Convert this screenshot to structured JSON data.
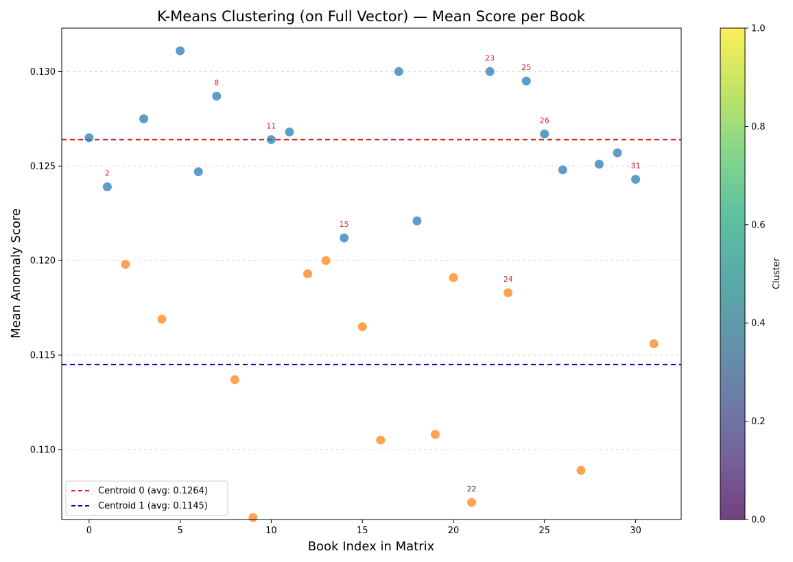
{
  "chart_data": {
    "type": "scatter",
    "title": "K-Means Clustering (on Full Vector) — Mean Score per Book",
    "xlabel": "Book Index in Matrix",
    "ylabel": "Mean Anomaly Score",
    "xlim": [
      -1.5,
      32.5
    ],
    "ylim": [
      0.1063,
      0.1323
    ],
    "x_ticks": [
      0,
      5,
      10,
      15,
      20,
      25,
      30
    ],
    "x_tick_labels": [
      "0",
      "5",
      "10",
      "15",
      "20",
      "25",
      "30"
    ],
    "y_ticks": [
      0.11,
      0.115,
      0.12,
      0.125,
      0.13
    ],
    "y_tick_labels": [
      "0.110",
      "0.115",
      "0.120",
      "0.125",
      "0.130"
    ],
    "grid": "horizontal dashed",
    "colors": {
      "cluster0": "#1f77b4",
      "cluster1": "#ff7f0e",
      "centroid0": "#d62728",
      "centroid1": "#0000cc",
      "annotation_red": "#d62728",
      "annotation_dark": "#333333"
    },
    "series": [
      {
        "cluster": 0,
        "points": [
          {
            "x": 0,
            "y": 0.1265
          },
          {
            "x": 1,
            "y": 0.1239
          },
          {
            "x": 3,
            "y": 0.1275
          },
          {
            "x": 5,
            "y": 0.1311
          },
          {
            "x": 6,
            "y": 0.1247
          },
          {
            "x": 7,
            "y": 0.1287
          },
          {
            "x": 10,
            "y": 0.1264
          },
          {
            "x": 11,
            "y": 0.1268
          },
          {
            "x": 14,
            "y": 0.1212
          },
          {
            "x": 17,
            "y": 0.13
          },
          {
            "x": 18,
            "y": 0.1221
          },
          {
            "x": 22,
            "y": 0.13
          },
          {
            "x": 24,
            "y": 0.1295
          },
          {
            "x": 25,
            "y": 0.1267
          },
          {
            "x": 26,
            "y": 0.1248
          },
          {
            "x": 28,
            "y": 0.1251
          },
          {
            "x": 29,
            "y": 0.1257
          },
          {
            "x": 30,
            "y": 0.1243
          }
        ]
      },
      {
        "cluster": 1,
        "points": [
          {
            "x": 2,
            "y": 0.1198
          },
          {
            "x": 4,
            "y": 0.1169
          },
          {
            "x": 8,
            "y": 0.1137
          },
          {
            "x": 9,
            "y": 0.1064
          },
          {
            "x": 12,
            "y": 0.1193
          },
          {
            "x": 13,
            "y": 0.12
          },
          {
            "x": 15,
            "y": 0.1165
          },
          {
            "x": 16,
            "y": 0.1105
          },
          {
            "x": 19,
            "y": 0.1108
          },
          {
            "x": 20,
            "y": 0.1191
          },
          {
            "x": 21,
            "y": 0.1072
          },
          {
            "x": 23,
            "y": 0.1183
          },
          {
            "x": 27,
            "y": 0.1089
          },
          {
            "x": 31,
            "y": 0.1156
          }
        ]
      }
    ],
    "centroids": [
      {
        "label": "Centroid 0 (avg: 0.1264)",
        "value": 0.1264,
        "color": "#d62728"
      },
      {
        "label": "Centroid 1 (avg: 0.1145)",
        "value": 0.1145,
        "color": "#0000cc"
      }
    ],
    "annotations": [
      {
        "text": "2",
        "x": 1,
        "y": 0.1239,
        "color": "#d62728"
      },
      {
        "text": "8",
        "x": 7,
        "y": 0.1287,
        "color": "#d62728"
      },
      {
        "text": "11",
        "x": 10,
        "y": 0.1264,
        "color": "#d62728"
      },
      {
        "text": "15",
        "x": 14,
        "y": 0.1212,
        "color": "#d62728"
      },
      {
        "text": "23",
        "x": 22,
        "y": 0.13,
        "color": "#d62728"
      },
      {
        "text": "25",
        "x": 24,
        "y": 0.1295,
        "color": "#d62728"
      },
      {
        "text": "26",
        "x": 25,
        "y": 0.1267,
        "color": "#d62728"
      },
      {
        "text": "31",
        "x": 30,
        "y": 0.1243,
        "color": "#d62728"
      },
      {
        "text": "24",
        "x": 23,
        "y": 0.1183,
        "color": "#d62728"
      },
      {
        "text": "22",
        "x": 21,
        "y": 0.1072,
        "color": "#333333"
      }
    ],
    "legend": {
      "placement": "lower-left"
    },
    "colorbar": {
      "label": "Cluster",
      "range": [
        0,
        1
      ],
      "ticks": [
        0.0,
        0.2,
        0.4,
        0.6,
        0.8,
        1.0
      ],
      "tick_labels": [
        "0.0",
        "0.2",
        "0.4",
        "0.6",
        "0.8",
        "1.0"
      ],
      "colormap": "viridis"
    }
  }
}
